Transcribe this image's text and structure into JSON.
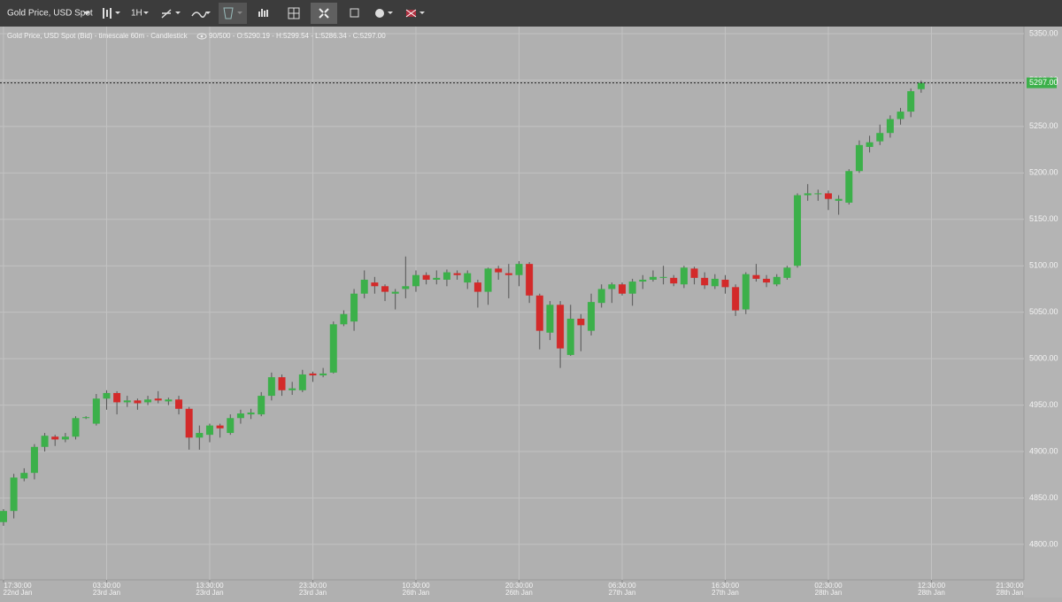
{
  "toolbar": {
    "symbol": "Gold Price, USD Spot",
    "timeframe": "1H"
  },
  "chart_data": {
    "type": "candlestick",
    "title": "Gold Price, USD Spot (Bid) - timescale 60m - Candlestick",
    "status": "90/500 - O:5290.19 - H:5299.54 - L:5286.34 - C:5297.00",
    "up_color": "#3cb04a",
    "down_color": "#d32a2a",
    "open": [
      4824,
      4836,
      4871,
      4877,
      4905,
      4916,
      4913,
      4916,
      4936,
      4930,
      4957,
      4963,
      4953,
      4955,
      4953,
      4957,
      4954,
      4956,
      4946,
      4915,
      4918,
      4928,
      4920,
      4936,
      4940,
      4940,
      4960,
      4980,
      4966,
      4966,
      4984,
      4982,
      4985,
      5037,
      5040,
      5070,
      5082,
      5078,
      5070,
      5075,
      5078,
      5090,
      5085,
      5085,
      5092,
      5082,
      5082,
      5072,
      5097,
      5092,
      5090,
      5102,
      5068,
      5028,
      5058,
      5004,
      5043,
      5030,
      5060,
      5075,
      5080,
      5070,
      5083,
      5085,
      5087,
      5087,
      5080,
      5097,
      5087,
      5078,
      5085,
      5077,
      5053,
      5090,
      5086,
      5080,
      5087,
      5100,
      5176,
      5177,
      5178,
      5170,
      5168,
      5202,
      5228,
      5234,
      5243,
      5258,
      5266,
      5290.19
    ],
    "high": [
      4838,
      4876,
      4882,
      4908,
      4920,
      4918,
      4920,
      4938,
      4938,
      4962,
      4966,
      4965,
      4960,
      4957,
      4960,
      4965,
      4958,
      4960,
      4948,
      4928,
      4930,
      4930,
      4940,
      4945,
      4946,
      4964,
      4985,
      4983,
      4975,
      4988,
      4986,
      4990,
      5040,
      5052,
      5075,
      5095,
      5088,
      5080,
      5075,
      5110,
      5095,
      5093,
      5095,
      5096,
      5095,
      5095,
      5085,
      5098,
      5100,
      5102,
      5105,
      5104,
      5070,
      5062,
      5062,
      5058,
      5048,
      5070,
      5080,
      5082,
      5082,
      5086,
      5090,
      5095,
      5100,
      5090,
      5100,
      5099,
      5093,
      5091,
      5090,
      5080,
      5093,
      5102,
      5090,
      5091,
      5100,
      5178,
      5188,
      5182,
      5181,
      5176,
      5204,
      5235,
      5240,
      5252,
      5262,
      5270,
      5291,
      5299.54
    ],
    "low": [
      4820,
      4828,
      4868,
      4870,
      4900,
      4906,
      4910,
      4913,
      4935,
      4928,
      4945,
      4940,
      4948,
      4945,
      4950,
      4952,
      4950,
      4940,
      4902,
      4902,
      4910,
      4915,
      4918,
      4930,
      4935,
      4938,
      4955,
      4960,
      4961,
      4964,
      4975,
      4980,
      4984,
      5035,
      5030,
      5065,
      5070,
      5062,
      5053,
      5065,
      5072,
      5080,
      5080,
      5078,
      5085,
      5075,
      5055,
      5058,
      5085,
      5065,
      5078,
      5060,
      5010,
      5020,
      4990,
      5003,
      5008,
      5025,
      5055,
      5060,
      5068,
      5057,
      5075,
      5083,
      5080,
      5078,
      5076,
      5080,
      5075,
      5075,
      5070,
      5046,
      5048,
      5083,
      5077,
      5078,
      5085,
      5098,
      5170,
      5170,
      5160,
      5155,
      5166,
      5200,
      5222,
      5230,
      5238,
      5252,
      5260,
      5286.34
    ],
    "close": [
      4836,
      4872,
      4877,
      4905,
      4917,
      4913,
      4916,
      4936,
      4937,
      4957,
      4963,
      4953,
      4955,
      4952,
      4956,
      4955,
      4956,
      4946,
      4915,
      4920,
      4928,
      4925,
      4936,
      4941,
      4942,
      4960,
      4980,
      4966,
      4968,
      4983,
      4982,
      4984,
      5037,
      5048,
      5070,
      5085,
      5078,
      5072,
      5072,
      5078,
      5090,
      5085,
      5087,
      5093,
      5090,
      5092,
      5072,
      5097,
      5093,
      5090,
      5102,
      5068,
      5030,
      5058,
      5011,
      5043,
      5036,
      5061,
      5075,
      5080,
      5070,
      5083,
      5085,
      5088,
      5088,
      5081,
      5098,
      5087,
      5079,
      5086,
      5077,
      5052,
      5091,
      5086,
      5082,
      5088,
      5098,
      5176,
      5178,
      5178,
      5172,
      5172,
      5202,
      5230,
      5233,
      5243,
      5258,
      5266,
      5288,
      5297.0
    ],
    "ylim": [
      4761.8,
      5357.6
    ],
    "yticks": [
      {
        "value": 5350,
        "label": "5350.00"
      },
      {
        "value": 5300,
        "label": "5300.00"
      },
      {
        "value": 5250,
        "label": "5250.00"
      },
      {
        "value": 5200,
        "label": "5200.00"
      },
      {
        "value": 5150,
        "label": "5150.00"
      },
      {
        "value": 5100,
        "label": "5100.00"
      },
      {
        "value": 5050,
        "label": "5050.00"
      },
      {
        "value": 5000,
        "label": "5000.00"
      },
      {
        "value": 4950,
        "label": "4950.00"
      },
      {
        "value": 4900,
        "label": "4900.00"
      },
      {
        "value": 4850,
        "label": "4850.00"
      },
      {
        "value": 4800,
        "label": "4800.00"
      }
    ],
    "xlim": [
      -0.34,
      98.97
    ],
    "xticks": [
      {
        "value": 0,
        "label": "17:30:00"
      },
      {
        "value": 10,
        "label": "03:30:00"
      },
      {
        "value": 20,
        "label": "13:30:00"
      },
      {
        "value": 30,
        "label": "23:30:00"
      },
      {
        "value": 40,
        "label": "10:30:00"
      },
      {
        "value": 50,
        "label": "20:30:00"
      },
      {
        "value": 60,
        "label": "06:30:00"
      },
      {
        "value": 70,
        "label": "16:30:00"
      },
      {
        "value": 80,
        "label": "02:30:00"
      },
      {
        "value": 90,
        "label": "12:30:00"
      },
      {
        "value": 99,
        "label": "21:30:00"
      }
    ],
    "xtick_dates": [
      "22nd Jan",
      "23rd Jan",
      "23rd Jan",
      "23rd Jan",
      "26th Jan",
      "26th Jan",
      "27th Jan",
      "27th Jan",
      "28th Jan",
      "28th Jan",
      "28th Jan"
    ],
    "price_line": {
      "value": 5297,
      "label": "5297.00"
    },
    "grid": true
  }
}
